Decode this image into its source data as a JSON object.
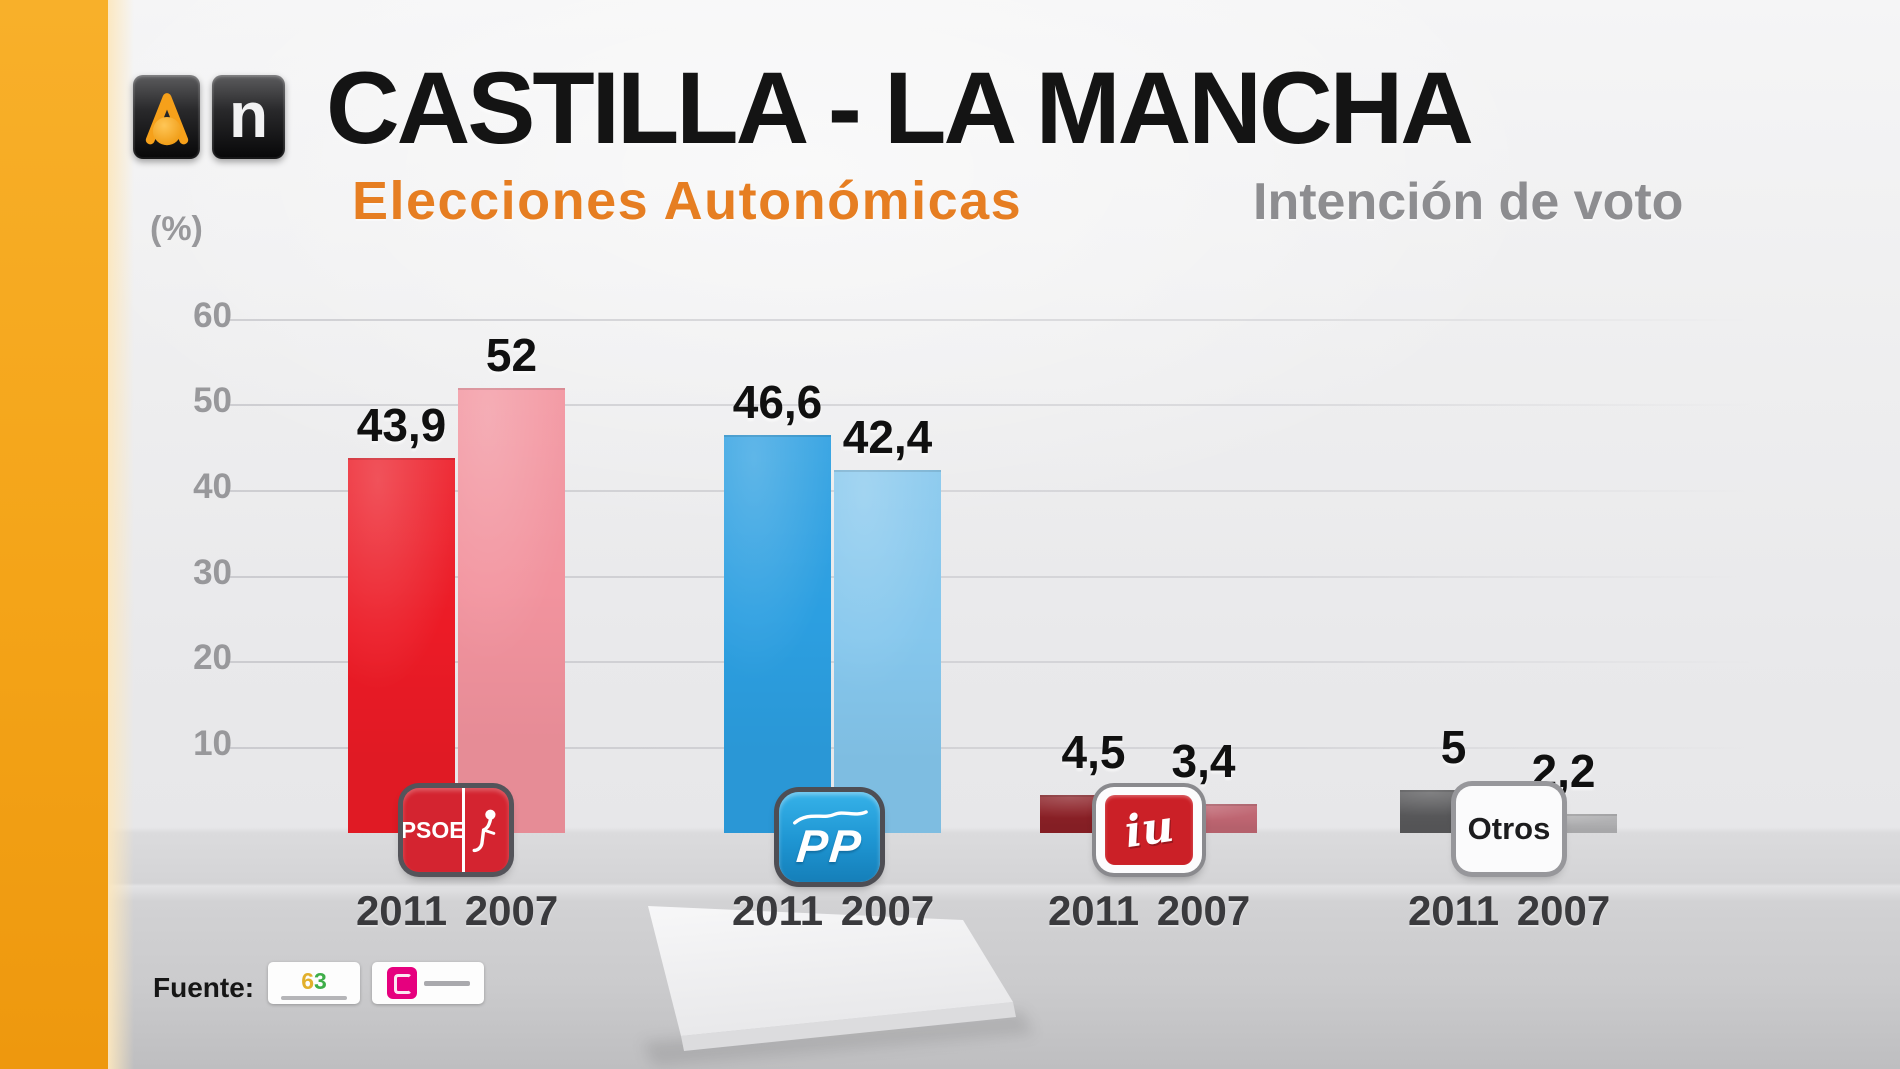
{
  "header": {
    "brand": {
      "icon": "antena3-icon",
      "noticias_letter": "n"
    },
    "title": "CASTILLA - LA MANCHA",
    "subtitle_left": "Elecciones Autonómicas",
    "subtitle_right": "Intención de voto"
  },
  "chart_data": {
    "type": "bar",
    "title": "CASTILLA - LA MANCHA",
    "subtitle": "Elecciones Autonómicas",
    "measure": "Intención de voto",
    "unit_label": "(%)",
    "grid": true,
    "ylim": [
      0,
      65
    ],
    "y_ticks": [
      60,
      50,
      40,
      30,
      20,
      10
    ],
    "categories": [
      "PSOE",
      "PP",
      "IU",
      "Otros"
    ],
    "series": [
      {
        "name": "2011",
        "values": [
          43.9,
          46.6,
          4.5,
          5
        ]
      },
      {
        "name": "2007",
        "values": [
          52,
          42.4,
          3.4,
          2.2
        ]
      }
    ],
    "value_labels": [
      [
        "43,9",
        "46,6",
        "4,5",
        "5"
      ],
      [
        "52",
        "42,4",
        "3,4",
        "2,2"
      ]
    ],
    "x_tick_labels_per_group": [
      "2011",
      "2007"
    ],
    "legend_position": "none"
  },
  "party_logos": {
    "psoe": "PSOE",
    "pp": "PP",
    "iu": "iu",
    "otros": "Otros"
  },
  "footer": {
    "source_label": "Fuente:",
    "source1_first": "6",
    "source1_second": "3"
  },
  "colors": {
    "band_orange": "#F4A41C",
    "title_black": "#141414",
    "subtitle_orange": "#E67E22",
    "subtitle_gray": "#8D8D90",
    "axis_gray": "#98989B",
    "year_gray": "#3A3A3D",
    "series": {
      "PSOE": {
        "2011": "#EC1B26",
        "2007": "#F2939E"
      },
      "PP": {
        "2011": "#2C9FE1",
        "2007": "#85C7ED"
      },
      "IU": {
        "2011": "#8B2026",
        "2007": "#BF6672"
      },
      "Otros": {
        "2011": "#59595B",
        "2007": "#B0B0B2"
      }
    },
    "psoe_logo_red": "#D42430",
    "pp_logo_blue": "#1E9CD7",
    "iu_logo_red": "#CB2027",
    "tns_magenta": "#E6007E"
  }
}
